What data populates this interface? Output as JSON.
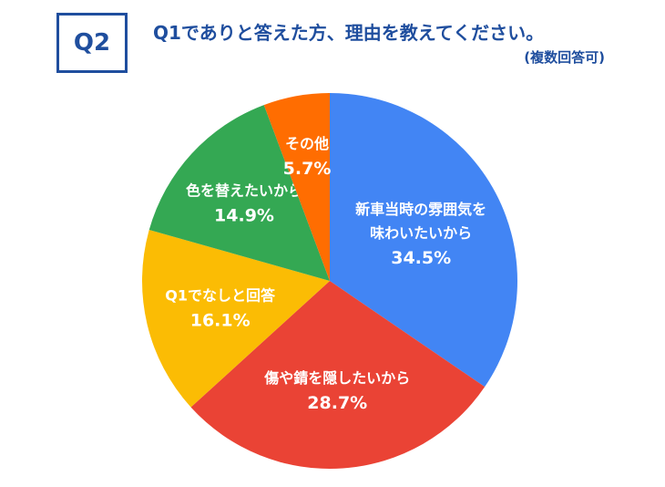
{
  "header": {
    "badge": "Q2",
    "title": "Q1でありと答えた方、理由を教えてください。",
    "subtitle": "(複数回答可)"
  },
  "chart_data": {
    "type": "pie",
    "start_angle": "12 o'clock",
    "direction": "clockwise",
    "slices": [
      {
        "label_lines": [
          "新車当時の雰囲気を",
          "味わいたいから"
        ],
        "value": 34.5,
        "value_label": "34.5%",
        "color": "#4285F4"
      },
      {
        "label_lines": [
          "傷や錆を隠したいから"
        ],
        "value": 28.7,
        "value_label": "28.7%",
        "color": "#EA4335"
      },
      {
        "label_lines": [
          "Q1でなしと回答"
        ],
        "value": 16.1,
        "value_label": "16.1%",
        "color": "#FBBC04"
      },
      {
        "label_lines": [
          "色を替えたいから"
        ],
        "value": 14.9,
        "value_label": "14.9%",
        "color": "#34A853"
      },
      {
        "label_lines": [
          "その他"
        ],
        "value": 5.7,
        "value_label": "5.7%",
        "color": "#FF6D01"
      }
    ]
  }
}
